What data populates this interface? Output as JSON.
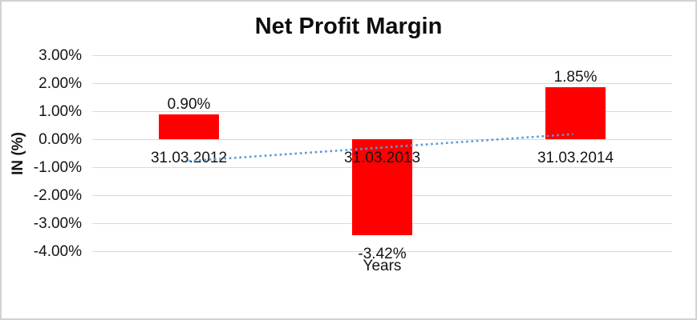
{
  "chart_data": {
    "type": "bar",
    "title": "Net Profit Margin",
    "xlabel": "Years",
    "ylabel": "IN (%)",
    "categories": [
      "31.03.2012",
      "31.03.2013",
      "31.03.2014"
    ],
    "values": [
      0.9,
      -3.42,
      1.85
    ],
    "data_labels": [
      "0.90%",
      "-3.42%",
      "1.85%"
    ],
    "yticks": [
      {
        "value": 3,
        "label": "3.00%"
      },
      {
        "value": 2,
        "label": "2.00%"
      },
      {
        "value": 1,
        "label": "1.00%"
      },
      {
        "value": 0,
        "label": "0.00%"
      },
      {
        "value": -1,
        "label": "-1.00%"
      },
      {
        "value": -2,
        "label": "-2.00%"
      },
      {
        "value": -3,
        "label": "-3.00%"
      },
      {
        "value": -4,
        "label": "-4.00%"
      }
    ],
    "ylim": [
      -4,
      3
    ],
    "grid": true,
    "legend": false,
    "bar_color": "#ff0000",
    "gridline_color": "#d9d9d9",
    "text_color": "#141414",
    "trendline": {
      "type": "linear",
      "style": "dotted",
      "color": "#5b9bd5",
      "start_value": -0.78,
      "end_value": 0.18
    }
  }
}
